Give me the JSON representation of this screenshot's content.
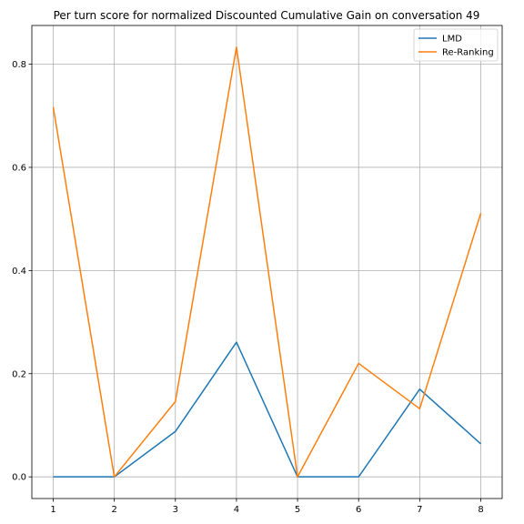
{
  "chart_data": {
    "type": "line",
    "title": "Per turn score for normalized Discounted Cumulative Gain on conversation 49",
    "xlabel": "",
    "ylabel": "",
    "x": [
      1,
      2,
      3,
      4,
      5,
      6,
      7,
      8
    ],
    "xlim": [
      0.65,
      8.35
    ],
    "ylim": [
      -0.042,
      0.875
    ],
    "xticks": [
      1,
      2,
      3,
      4,
      5,
      6,
      7,
      8
    ],
    "yticks": [
      0.0,
      0.2,
      0.4,
      0.6,
      0.8
    ],
    "ytick_labels": [
      "0.0",
      "0.2",
      "0.4",
      "0.6",
      "0.8"
    ],
    "grid": true,
    "legend_position": "top-right",
    "series": [
      {
        "name": "LMD",
        "color": "#1f77b4",
        "values": [
          0.0,
          0.0,
          0.088,
          0.261,
          0.0,
          0.0,
          0.17,
          0.064
        ]
      },
      {
        "name": "Re-Ranking",
        "color": "#ff7f0e",
        "values": [
          0.717,
          0.0,
          0.146,
          0.833,
          0.0,
          0.22,
          0.132,
          0.511
        ]
      }
    ]
  }
}
